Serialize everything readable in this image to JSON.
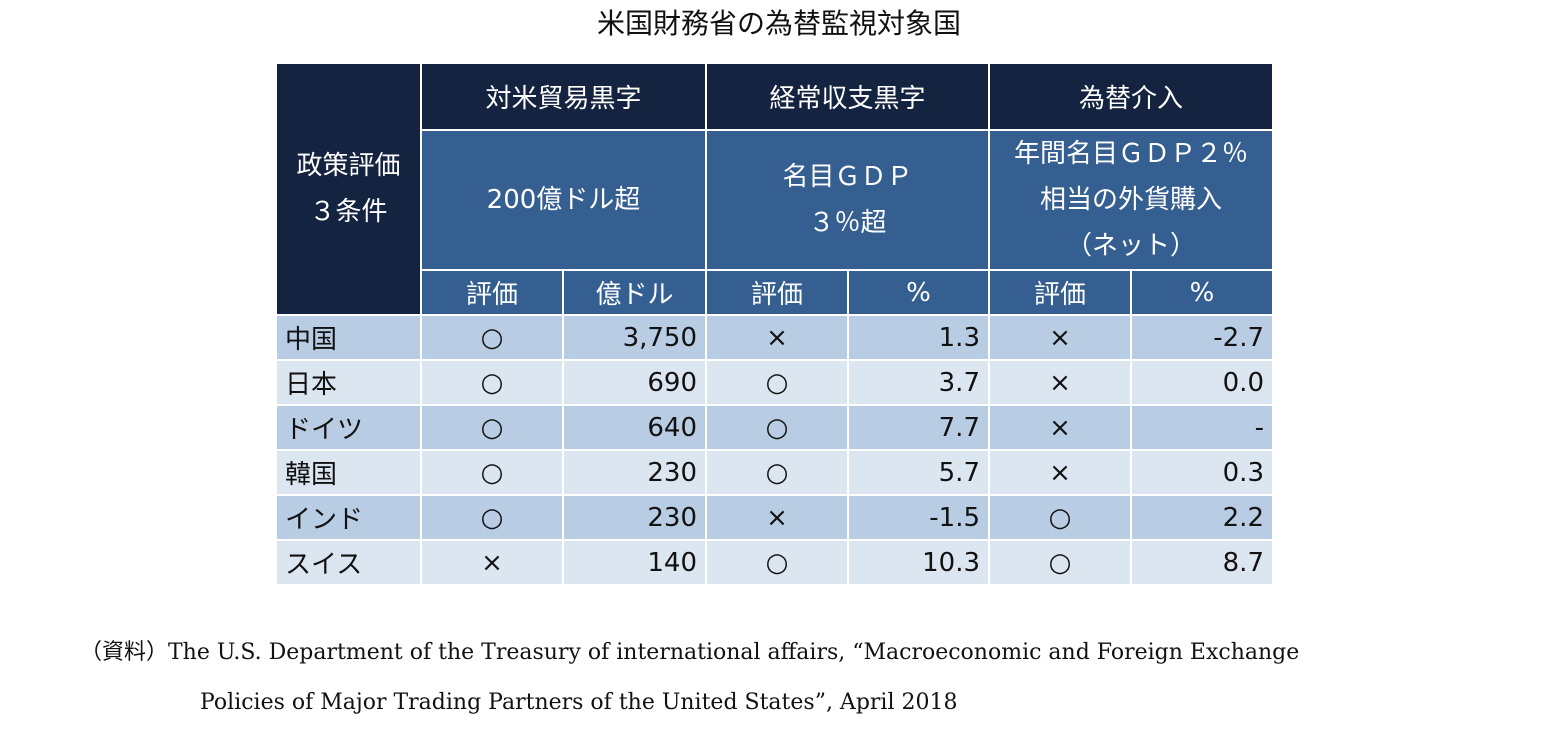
{
  "title": "米国財務省の為替監視対象国",
  "table": {
    "corner": [
      "政策評価",
      "３条件"
    ],
    "groups": [
      {
        "name": "対米貿易黒字",
        "criterion": [
          "200億ドル超"
        ]
      },
      {
        "name": "経常収支黒字",
        "criterion": [
          "名目ＧＤＰ",
          "３％超"
        ]
      },
      {
        "name": "為替介入",
        "criterion": [
          "年間名目ＧＤＰ２％",
          "相当の外貨購入",
          "（ネット）"
        ]
      }
    ],
    "subheaders": [
      "評価",
      "億ドル",
      "評価",
      "%",
      "評価",
      "%"
    ],
    "rows": [
      [
        "中国",
        "○",
        "3,750",
        "×",
        "1.3",
        "×",
        "-2.7"
      ],
      [
        "日本",
        "○",
        "690",
        "○",
        "3.7",
        "×",
        "0.0"
      ],
      [
        "ドイツ",
        "○",
        "640",
        "○",
        "7.7",
        "×",
        "-"
      ],
      [
        "韓国",
        "○",
        "230",
        "○",
        "5.7",
        "×",
        "0.3"
      ],
      [
        "インド",
        "○",
        "230",
        "×",
        "-1.5",
        "○",
        "2.2"
      ],
      [
        "スイス",
        "×",
        "140",
        "○",
        "10.3",
        "○",
        "8.7"
      ]
    ]
  },
  "source": [
    "（資料）The U.S. Department of the Treasury of international affairs, “Macroeconomic and Foreign Exchange",
    "Policies of Major Trading Partners of the United States”, April 2018"
  ]
}
